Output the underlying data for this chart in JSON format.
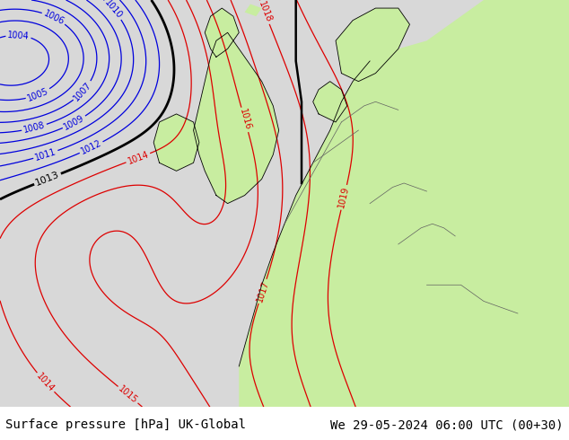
{
  "title_left": "Surface pressure [hPa] UK-Global",
  "title_right": "We 29-05-2024 06:00 UTC (00+30)",
  "fig_width": 6.34,
  "fig_height": 4.9,
  "dpi": 100,
  "footer_bg": "#ffffff",
  "footer_text_color": "#000000",
  "footer_fontsize": 10,
  "blue_contour_color": "#0000dd",
  "red_contour_color": "#dd0000",
  "black_contour_color": "#000000",
  "gray_border_color": "#606060",
  "contour_label_fontsize": 7,
  "land_color": "#c8eda0",
  "sea_color": "#d8d8d8",
  "map_bg_color": "#c8eda0"
}
